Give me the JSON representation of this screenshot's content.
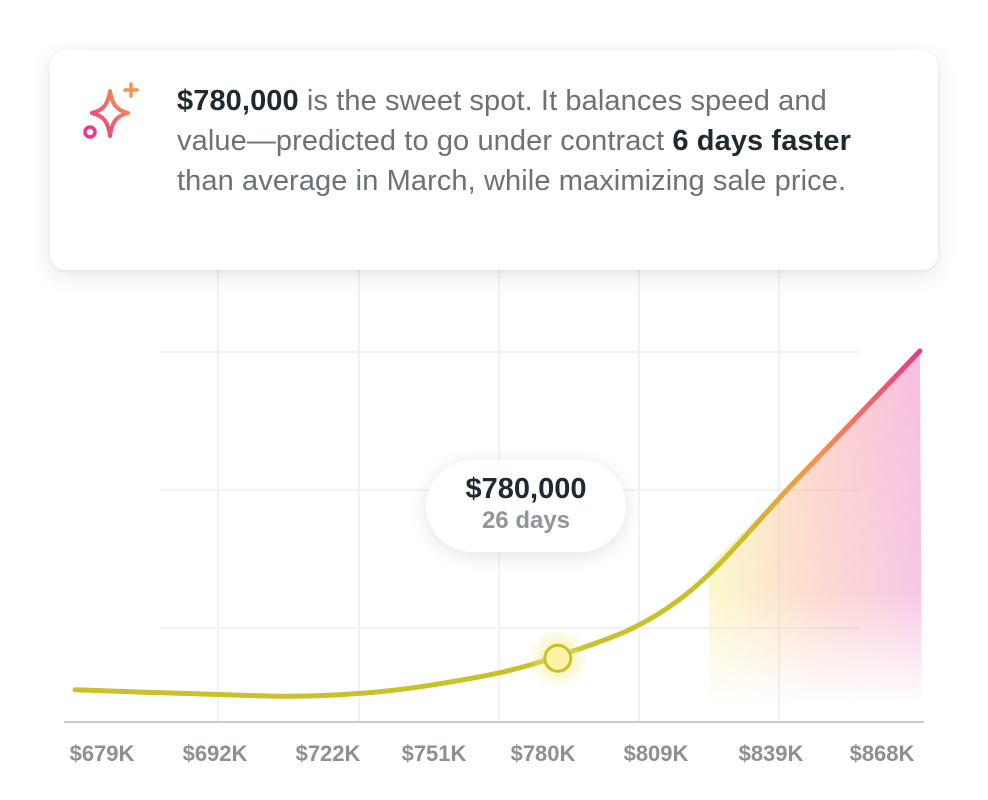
{
  "insight": {
    "price": "$780,000",
    "text_1": " is the sweet spot. It balances speed and value—predicted to go under contract ",
    "highlight": "6 days faster",
    "text_2": " than average in March, while maximizing sale price.",
    "icon": "sparkle-icon"
  },
  "tooltip": {
    "price": "$780,000",
    "days": "26 days"
  },
  "colors": {
    "line_low": "#c9c02a",
    "line_high": "#e8388a",
    "marker_fill": "#fbf4a6",
    "accent_orange": "#f7914d",
    "text_dark": "#1e2a30",
    "text_muted": "#6b7176",
    "axis_label": "#8a9095"
  },
  "chart_data": {
    "type": "line",
    "title": "",
    "xlabel": "",
    "ylabel": "",
    "x_tick_labels": [
      "$679K",
      "$692K",
      "$722K",
      "$751K",
      "$780K",
      "$809K",
      "$839K",
      "$868K"
    ],
    "ylim": [
      0,
      100
    ],
    "points": [
      {
        "x": 0,
        "y": 9.0
      },
      {
        "x": 1,
        "y": 7.6
      },
      {
        "x": 2,
        "y": 6.9
      },
      {
        "x": 3,
        "y": 11.0
      },
      {
        "x": 4,
        "y": 21.0
      },
      {
        "x": 5,
        "y": 41.0
      },
      {
        "x": 6,
        "y": 85.0
      },
      {
        "x": 7,
        "y": 130.0
      }
    ],
    "highlight": {
      "x_index": 4,
      "label": "$780,000",
      "value": "26 days"
    },
    "grid": true,
    "legend": "none"
  }
}
